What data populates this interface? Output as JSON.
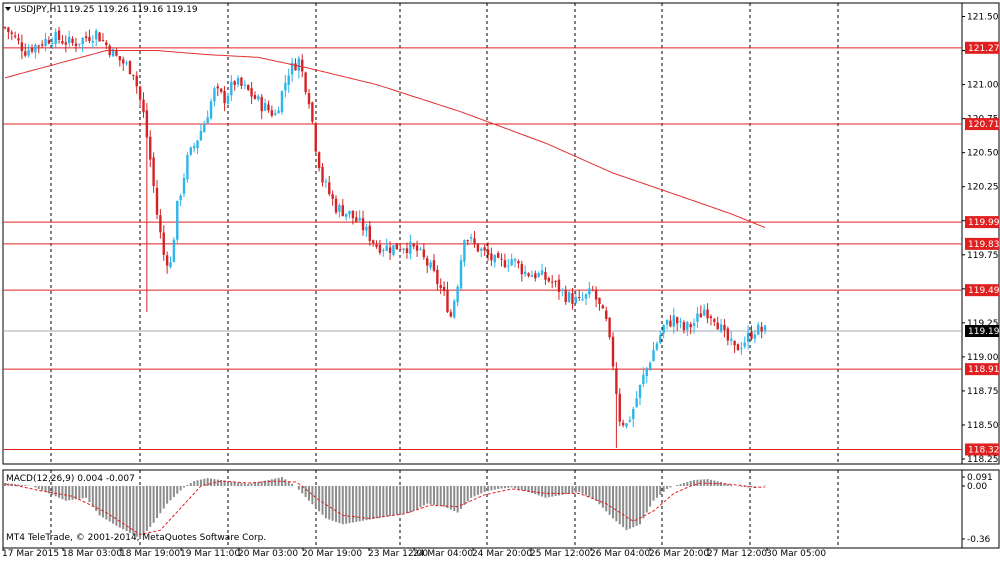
{
  "header": {
    "symbol": "USDJPY,H1",
    "ohlc": "119.25 119.26 119.16 119.19",
    "indicator": "MACD(12,26,9) 0.004 -0.007",
    "copyright": "MT4 TeleTrade, © 2001-2014, MetaQuotes Software Corp."
  },
  "colors": {
    "bull": "#2db6ea",
    "bear": "#d42326",
    "level": "#e02020",
    "ma": "#e03030",
    "grid": "#000000",
    "current": "#a0a8b0",
    "macd_hist": "#8c8c8c",
    "macd_signal": "#e02020"
  },
  "chart_data": {
    "type": "candlestick",
    "timeframe": "H1",
    "ylim": [
      118.25,
      121.63
    ],
    "y_ticks": [
      "121.5",
      "121.25",
      "121.0",
      "120.75",
      "120.5",
      "120.25",
      "120.0",
      "119.75",
      "119.5",
      "119.25",
      "119.0",
      "118.75",
      "118.5",
      "118.25"
    ],
    "x_ticks": [
      "17 Mar 2015",
      "18 Mar 03:00",
      "18 Mar 19:00",
      "19 Mar 11:00",
      "20 Mar 03:00",
      "20 Mar 19:00",
      "23 Mar 12:00",
      "24 Mar 04:00",
      "24 Mar 20:00",
      "25 Mar 12:00",
      "26 Mar 04:00",
      "26 Mar 20:00",
      "27 Mar 12:00",
      "30 Mar 05:00"
    ],
    "levels": [
      "121.27",
      "120.71",
      "119.99",
      "119.83",
      "119.49",
      "118.91",
      "118.32"
    ],
    "current_price": "119.19",
    "close_path": [
      [
        0,
        121.42
      ],
      [
        6,
        121.25
      ],
      [
        14,
        121.35
      ],
      [
        20,
        121.3
      ],
      [
        27,
        121.38
      ],
      [
        33,
        121.2
      ],
      [
        38,
        121.1
      ],
      [
        41,
        120.78
      ],
      [
        43,
        120.45
      ],
      [
        45,
        120.05
      ],
      [
        47,
        119.75
      ],
      [
        49,
        119.68
      ],
      [
        51,
        120.1
      ],
      [
        54,
        120.45
      ],
      [
        56,
        120.55
      ],
      [
        59,
        120.72
      ],
      [
        62,
        120.95
      ],
      [
        65,
        120.9
      ],
      [
        68,
        121.02
      ],
      [
        72,
        120.95
      ],
      [
        76,
        120.85
      ],
      [
        80,
        120.78
      ],
      [
        84,
        121.1
      ],
      [
        87,
        121.18
      ],
      [
        90,
        120.9
      ],
      [
        92,
        120.55
      ],
      [
        94,
        120.3
      ],
      [
        98,
        120.1
      ],
      [
        102,
        120.05
      ],
      [
        106,
        119.95
      ],
      [
        110,
        119.82
      ],
      [
        114,
        119.8
      ],
      [
        118,
        119.82
      ],
      [
        122,
        119.78
      ],
      [
        126,
        119.65
      ],
      [
        130,
        119.45
      ],
      [
        132,
        119.3
      ],
      [
        134,
        119.55
      ],
      [
        136,
        119.9
      ],
      [
        139,
        119.82
      ],
      [
        142,
        119.76
      ],
      [
        146,
        119.68
      ],
      [
        150,
        119.72
      ],
      [
        154,
        119.62
      ],
      [
        158,
        119.6
      ],
      [
        162,
        119.55
      ],
      [
        166,
        119.45
      ],
      [
        170,
        119.4
      ],
      [
        174,
        119.48
      ],
      [
        178,
        119.25
      ],
      [
        180,
        118.95
      ],
      [
        182,
        118.55
      ],
      [
        184,
        118.5
      ],
      [
        186,
        118.62
      ],
      [
        189,
        118.85
      ],
      [
        192,
        119.05
      ],
      [
        195,
        119.22
      ],
      [
        198,
        119.28
      ],
      [
        201,
        119.2
      ],
      [
        204,
        119.25
      ],
      [
        207,
        119.35
      ],
      [
        210,
        119.3
      ],
      [
        213,
        119.15
      ],
      [
        216,
        119.05
      ],
      [
        219,
        119.12
      ],
      [
        222,
        119.2
      ],
      [
        225,
        119.19
      ]
    ],
    "ma_path": [
      [
        0,
        121.05
      ],
      [
        30,
        121.25
      ],
      [
        45,
        121.25
      ],
      [
        60,
        121.22
      ],
      [
        75,
        121.2
      ],
      [
        90,
        121.12
      ],
      [
        110,
        121.0
      ],
      [
        135,
        120.8
      ],
      [
        160,
        120.57
      ],
      [
        180,
        120.35
      ],
      [
        200,
        120.18
      ],
      [
        215,
        120.05
      ],
      [
        225,
        119.95
      ]
    ],
    "macd": {
      "label": "MACD(12,26,9)",
      "main": "0.004",
      "signal": "-0.007",
      "y_ticks": [
        "0.091",
        "0.00",
        "-0.36"
      ],
      "hist_path": [
        [
          0,
          0.03
        ],
        [
          8,
          0.0
        ],
        [
          14,
          -0.06
        ],
        [
          18,
          -0.1
        ],
        [
          24,
          -0.08
        ],
        [
          28,
          -0.2
        ],
        [
          33,
          -0.27
        ],
        [
          38,
          -0.33
        ],
        [
          40,
          -0.36
        ],
        [
          44,
          -0.25
        ],
        [
          48,
          -0.12
        ],
        [
          52,
          -0.03
        ],
        [
          56,
          0.05
        ],
        [
          60,
          0.08
        ],
        [
          66,
          0.05
        ],
        [
          72,
          0.02
        ],
        [
          78,
          0.06
        ],
        [
          82,
          0.09
        ],
        [
          86,
          0.0
        ],
        [
          90,
          -0.1
        ],
        [
          95,
          -0.22
        ],
        [
          100,
          -0.26
        ],
        [
          105,
          -0.24
        ],
        [
          110,
          -0.22
        ],
        [
          115,
          -0.2
        ],
        [
          120,
          -0.18
        ],
        [
          125,
          -0.12
        ],
        [
          130,
          -0.14
        ],
        [
          134,
          -0.18
        ],
        [
          138,
          -0.08
        ],
        [
          142,
          -0.04
        ],
        [
          146,
          -0.02
        ],
        [
          150,
          -0.01
        ],
        [
          155,
          -0.04
        ],
        [
          160,
          -0.08
        ],
        [
          165,
          -0.06
        ],
        [
          170,
          -0.04
        ],
        [
          175,
          -0.1
        ],
        [
          180,
          -0.22
        ],
        [
          184,
          -0.3
        ],
        [
          188,
          -0.26
        ],
        [
          192,
          -0.1
        ],
        [
          196,
          -0.02
        ],
        [
          200,
          0.02
        ],
        [
          204,
          0.06
        ],
        [
          208,
          0.07
        ],
        [
          212,
          0.04
        ],
        [
          216,
          0.0
        ],
        [
          220,
          -0.01
        ],
        [
          225,
          0.004
        ]
      ],
      "signal_path": [
        [
          0,
          0.02
        ],
        [
          10,
          -0.03
        ],
        [
          20,
          -0.07
        ],
        [
          30,
          -0.18
        ],
        [
          40,
          -0.33
        ],
        [
          46,
          -0.3
        ],
        [
          52,
          -0.15
        ],
        [
          58,
          0.0
        ],
        [
          64,
          0.05
        ],
        [
          72,
          0.03
        ],
        [
          80,
          0.05
        ],
        [
          86,
          0.04
        ],
        [
          92,
          -0.08
        ],
        [
          100,
          -0.2
        ],
        [
          108,
          -0.22
        ],
        [
          118,
          -0.19
        ],
        [
          126,
          -0.13
        ],
        [
          134,
          -0.14
        ],
        [
          142,
          -0.06
        ],
        [
          150,
          -0.02
        ],
        [
          160,
          -0.05
        ],
        [
          170,
          -0.05
        ],
        [
          178,
          -0.12
        ],
        [
          186,
          -0.24
        ],
        [
          192,
          -0.17
        ],
        [
          198,
          -0.05
        ],
        [
          206,
          0.03
        ],
        [
          214,
          0.02
        ],
        [
          222,
          -0.01
        ],
        [
          225,
          -0.007
        ]
      ]
    }
  }
}
